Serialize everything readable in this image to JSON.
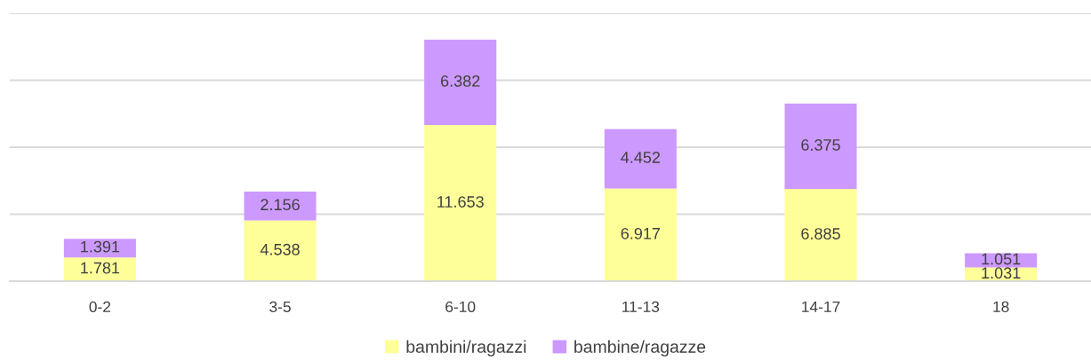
{
  "chart_data": {
    "type": "bar",
    "stacked": true,
    "categories": [
      "0-2",
      "3-5",
      "6-10",
      "11-13",
      "14-17",
      "18"
    ],
    "series": [
      {
        "name": "bambini/ragazzi",
        "color": "#ffff99",
        "values": [
          1781,
          4538,
          11653,
          6917,
          6885,
          1031
        ],
        "value_labels": [
          "1.781",
          "4.538",
          "11.653",
          "6.917",
          "6.885",
          "1.031"
        ]
      },
      {
        "name": "bambine/ragazze",
        "color": "#cc99ff",
        "values": [
          1391,
          2156,
          6382,
          4452,
          6375,
          1051
        ],
        "value_labels": [
          "1.391",
          "2.156",
          "6.382",
          "4.452",
          "6.375",
          "1.051"
        ]
      }
    ],
    "ylim": [
      0,
      20000
    ],
    "yticks": [
      {
        "value": 0,
        "label": null
      },
      {
        "value": 5000,
        "label": null
      },
      {
        "value": 10000,
        "label": null
      },
      {
        "value": 15000,
        "label": null
      },
      {
        "value": 20000,
        "label": null
      }
    ],
    "tick_labels": "x",
    "grid": "y",
    "legend": "bottom"
  }
}
